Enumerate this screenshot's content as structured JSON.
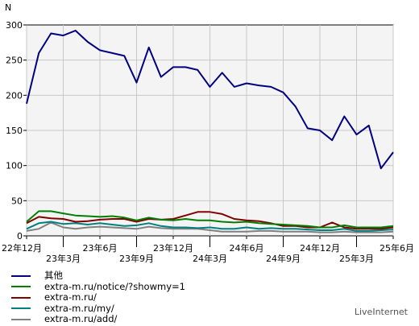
{
  "brand": "LiveInternet",
  "chart_data": {
    "type": "line",
    "ylabel": "N",
    "ylim": [
      0,
      300
    ],
    "yticks": [
      0,
      50,
      100,
      150,
      200,
      250,
      300
    ],
    "grid": true,
    "legend_position": "bottom-left",
    "x_tick_labels": [
      {
        "label": "22年12月",
        "pos": 0,
        "row": 0
      },
      {
        "label": "23年3月",
        "pos": 3,
        "row": 1
      },
      {
        "label": "23年6月",
        "pos": 6,
        "row": 0
      },
      {
        "label": "23年9月",
        "pos": 9,
        "row": 1
      },
      {
        "label": "23年12月",
        "pos": 12,
        "row": 0
      },
      {
        "label": "24年3月",
        "pos": 15,
        "row": 1
      },
      {
        "label": "24年6月",
        "pos": 18,
        "row": 0
      },
      {
        "label": "24年9月",
        "pos": 21,
        "row": 1
      },
      {
        "label": "24年12月",
        "pos": 24,
        "row": 0
      },
      {
        "label": "25年3月",
        "pos": 27,
        "row": 1
      },
      {
        "label": "25年6月",
        "pos": 30,
        "row": 0
      }
    ],
    "series": [
      {
        "name": "其他",
        "color": "#000080",
        "values": [
          188,
          260,
          288,
          285,
          292,
          276,
          264,
          260,
          256,
          218,
          268,
          226,
          240,
          240,
          236,
          212,
          232,
          212,
          217,
          214,
          212,
          204,
          184,
          153,
          150,
          136,
          170,
          144,
          157,
          96,
          119
        ]
      },
      {
        "name": "extra-m.ru/notice/?showmy=1",
        "color": "#008000",
        "values": [
          20,
          35,
          35,
          32,
          29,
          28,
          27,
          28,
          26,
          22,
          26,
          23,
          22,
          24,
          22,
          22,
          20,
          19,
          20,
          18,
          17,
          16,
          15,
          14,
          12,
          12,
          15,
          12,
          12,
          12,
          14
        ]
      },
      {
        "name": "extra-m.ru/",
        "color": "#800000",
        "values": [
          18,
          27,
          25,
          24,
          20,
          21,
          23,
          24,
          24,
          20,
          24,
          23,
          24,
          29,
          34,
          34,
          31,
          24,
          22,
          21,
          18,
          14,
          14,
          12,
          12,
          19,
          12,
          10,
          10,
          10,
          12
        ]
      },
      {
        "name": "extra-m.ru/my/",
        "color": "#008080",
        "values": [
          10,
          18,
          20,
          17,
          18,
          16,
          18,
          16,
          14,
          15,
          18,
          14,
          12,
          12,
          11,
          12,
          10,
          10,
          12,
          10,
          11,
          10,
          10,
          9,
          8,
          8,
          10,
          7,
          7,
          8,
          9
        ]
      },
      {
        "name": "extra-m.ru/add/",
        "color": "#808080",
        "values": [
          7,
          10,
          19,
          12,
          10,
          12,
          13,
          12,
          11,
          10,
          13,
          11,
          10,
          10,
          10,
          8,
          6,
          6,
          6,
          7,
          7,
          6,
          6,
          6,
          5,
          5,
          6,
          5,
          5,
          5,
          6
        ]
      }
    ]
  }
}
